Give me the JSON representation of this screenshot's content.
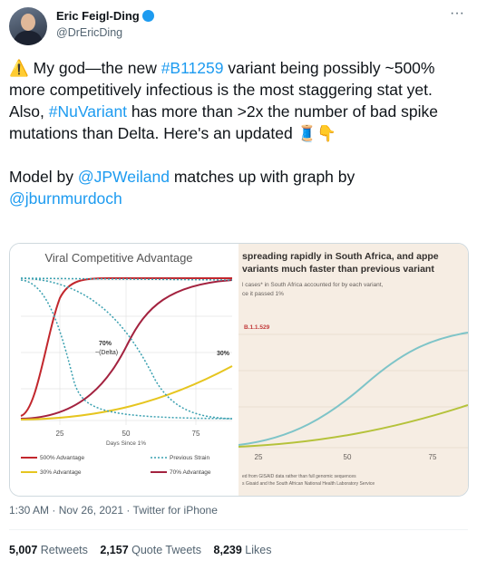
{
  "author": {
    "name": "Eric Feigl-Ding",
    "handle": "@DrEricDing"
  },
  "menu": "···",
  "tweet": {
    "paragraphs": [
      [
        "⚠️ My god—the new ",
        "#B11259",
        " variant being possibly ~500% more competitively infectious is the most staggering stat yet. Also, ",
        "#NuVariant",
        " has more than >2x the number of bad spike mutations than Delta. Here's an updated 🧵👇"
      ],
      [
        "Model by ",
        "@JPWeiland",
        " matches up with graph by ",
        "@jburnmurdoch"
      ]
    ]
  },
  "images": [
    {
      "title": "Viral Competitive Advantage",
      "annotations": [
        "70%",
        "~(Delta)",
        "30%"
      ],
      "x_ticks": [
        "25",
        "50",
        "75"
      ],
      "x_label": "Days Since 1%",
      "legend": [
        "500% Advantage",
        "Previous Strain",
        "30% Advantage",
        "70% Advantage"
      ]
    },
    {
      "headline": [
        "spreading rapidly in South Africa, and appe",
        "variants much faster than previous variant"
      ],
      "subtitle": [
        "l cases* in South Africa accounted for by each variant,",
        "ce it passed 1%"
      ],
      "series_label": "B.1.1.529",
      "x_ticks": [
        "25",
        "50",
        "75"
      ],
      "source": [
        "ed from GISAID data rather than full genomic sequences",
        "s Gisaid and the South African National Health Laboratory Service"
      ]
    }
  ],
  "meta": "1:30 AM · Nov 26, 2021 · Twitter for iPhone",
  "stats": [
    {
      "count": "5,007",
      "label": "Retweets"
    },
    {
      "count": "2,157",
      "label": "Quote Tweets"
    },
    {
      "count": "8,239",
      "label": "Likes"
    }
  ]
}
